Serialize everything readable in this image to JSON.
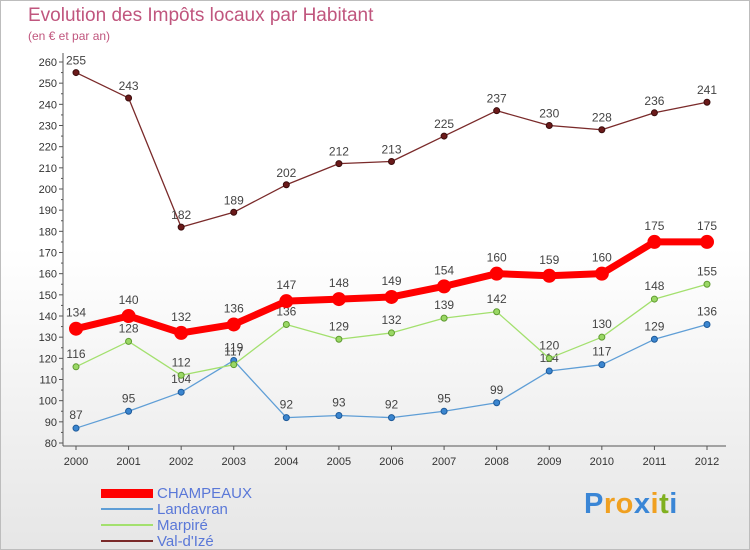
{
  "title": "Evolution des Impôts locaux par Habitant",
  "subtitle": "(en € et par an)",
  "colors": {
    "CHAMPEAUX": "#ff0000",
    "Landavran": "#5f9ed6",
    "Marpiré": "#a3e06e",
    "Val-d'Izé": "#7a2a2a"
  },
  "chart_data": {
    "type": "line",
    "x": [
      "2000",
      "2001",
      "2002",
      "2003",
      "2004",
      "2005",
      "2006",
      "2007",
      "2008",
      "2009",
      "2010",
      "2011",
      "2012"
    ],
    "ylim": [
      80,
      260
    ],
    "yticks": [
      80,
      90,
      100,
      110,
      120,
      130,
      140,
      150,
      160,
      170,
      180,
      190,
      200,
      210,
      220,
      230,
      240,
      250,
      260
    ],
    "grid": false,
    "series": [
      {
        "name": "Val-d'Izé",
        "values": [
          255,
          243,
          182,
          189,
          202,
          212,
          213,
          225,
          237,
          230,
          228,
          236,
          241
        ]
      },
      {
        "name": "Landavran",
        "values": [
          87,
          95,
          104,
          119,
          92,
          93,
          92,
          95,
          99,
          114,
          117,
          129,
          136
        ]
      },
      {
        "name": "Marpiré",
        "values": [
          116,
          128,
          112,
          117,
          136,
          129,
          132,
          139,
          142,
          120,
          130,
          148,
          155
        ]
      },
      {
        "name": "CHAMPEAUX",
        "values": [
          134,
          140,
          132,
          136,
          147,
          148,
          149,
          154,
          160,
          159,
          160,
          175,
          175
        ]
      }
    ]
  },
  "legend": [
    {
      "label": "CHAMPEAUX"
    },
    {
      "label": "Landavran"
    },
    {
      "label": "Marpiré"
    },
    {
      "label": "Val-d'Izé"
    }
  ],
  "logo": {
    "text": "Proxiti",
    "letter_colors": [
      "#3a86d6",
      "#f0a020",
      "#f0a020",
      "#3a86d6",
      "#f0a020",
      "#80b020",
      "#3a86d6"
    ]
  }
}
